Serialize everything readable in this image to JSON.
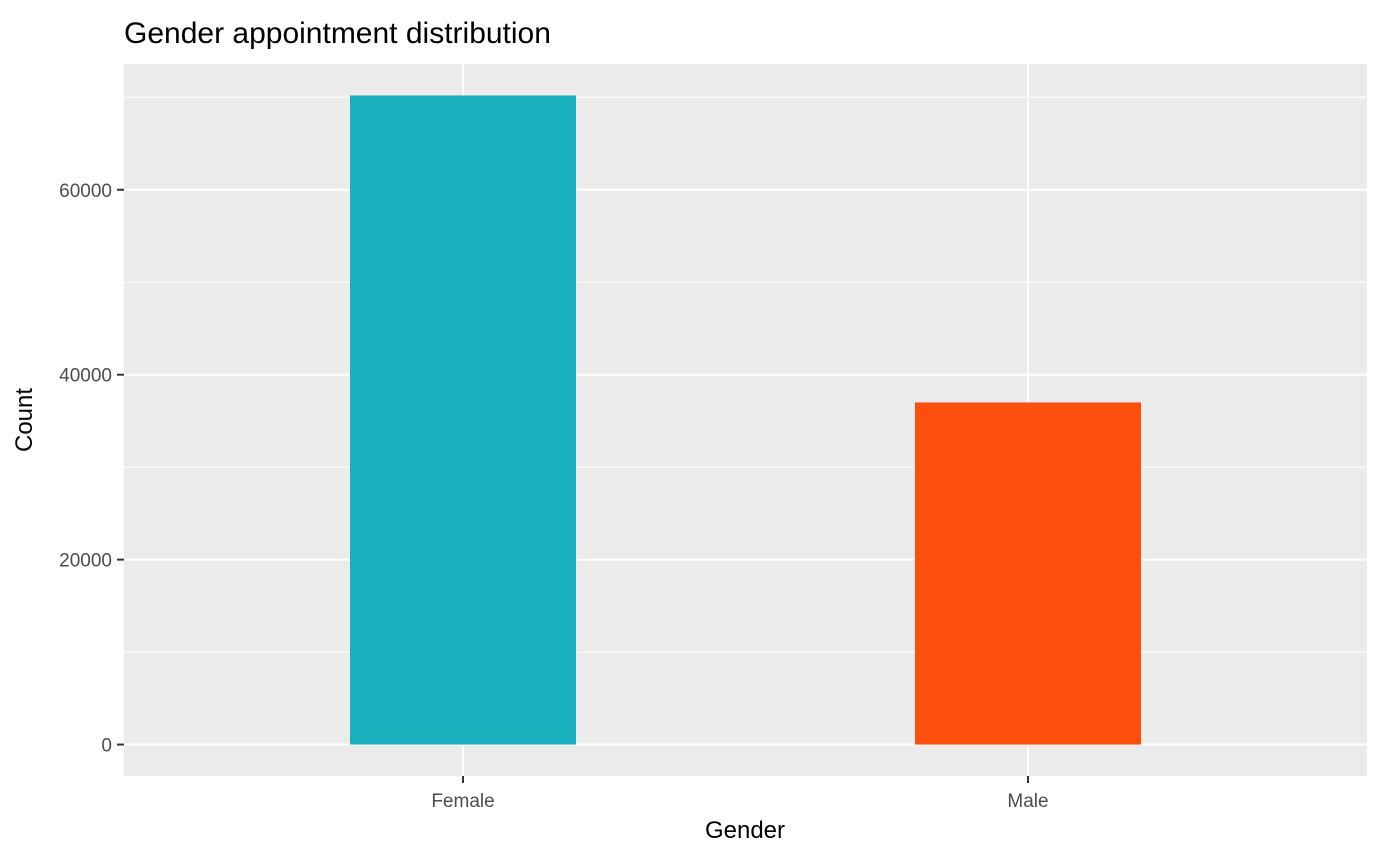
{
  "chart_data": {
    "type": "bar",
    "title": "Gender appointment distribution",
    "xlabel": "Gender",
    "ylabel": "Count",
    "categories": [
      "Female",
      "Male"
    ],
    "values": [
      70200,
      37000
    ],
    "colors": [
      "#1AAFBC",
      "#FC4E0C"
    ],
    "ylim": [
      -3400,
      73600
    ],
    "yticks": [
      0,
      20000,
      40000,
      60000
    ],
    "ytick_labels": [
      "0",
      "20000",
      "40000",
      "60000"
    ],
    "grid": true,
    "panel_background": "#EBEBEB",
    "gridline_color": "#FFFFFF"
  }
}
